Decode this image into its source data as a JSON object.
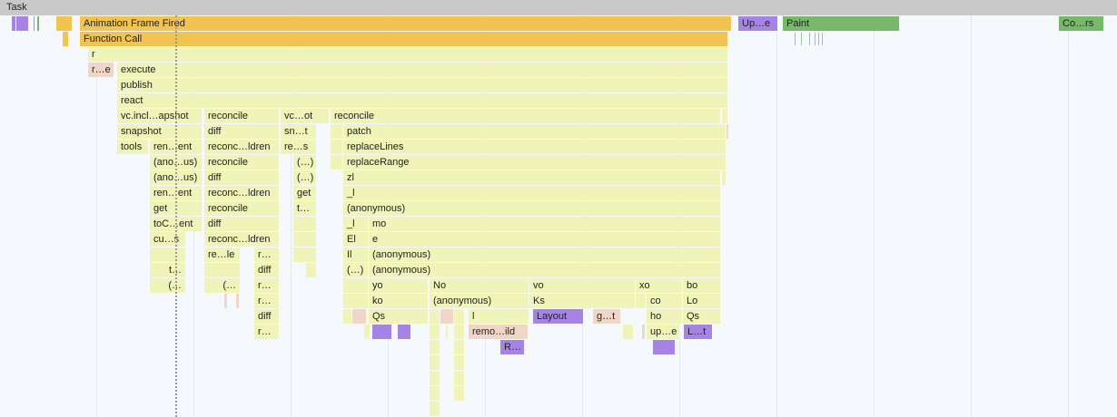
{
  "task_label": "Task",
  "events": {
    "animation_frame": "Animation Frame Fired",
    "function_call": "Function Call",
    "update_layer_tree": "Up…e",
    "paint": "Paint",
    "composite": "Co…rs"
  },
  "stack": {
    "r": "r",
    "re": "r…e",
    "execute": "execute",
    "publish": "publish",
    "react": "react",
    "vc_incl": "vc.incl…apshot",
    "reconcile": "reconcile",
    "vc_ot": "vc…ot",
    "snapshot": "snapshot",
    "diff": "diff",
    "sn_t": "sn…t",
    "patch": "patch",
    "tools": "tools",
    "ren_ent": "ren…ent",
    "reconc_ldren": "reconc…ldren",
    "re_s": "re…s",
    "replaceLines": "replaceLines",
    "ano_us": "(ano…us)",
    "paren_dots": "(…)",
    "replaceRange": "replaceRange",
    "get": "get",
    "zl": "zl",
    "_l": "_l",
    "t_dots": "t…",
    "anonymous": "(anonymous)",
    "toC_ent": "toC…ent",
    "mo": "mo",
    "cu_s": "cu…s",
    "El": "El",
    "e": "e",
    "re_le": "re…le",
    "r_dots": "r…",
    "Il": "Il",
    "t_short": "t…",
    "open_dots": "(…",
    "yo": "yo",
    "No": "No",
    "vo": "vo",
    "xo": "xo",
    "bo": "bo",
    "ko": "ko",
    "Ks": "Ks",
    "co": "co",
    "Lo": "Lo",
    "Qs": "Qs",
    "l": "l",
    "Layout": "Layout",
    "g_t": "g…t",
    "ho": "ho",
    "remo_ild": "remo…ild",
    "up_e": "up…e",
    "L_t": "L…t",
    "R_dots": "R…"
  },
  "colors": {
    "scripting": "#f0f4b8",
    "event": "#f1c351",
    "rendering": "#a584e6",
    "painting": "#78b86b",
    "gc": "#efd6c6",
    "task": "#c9c9c9"
  }
}
